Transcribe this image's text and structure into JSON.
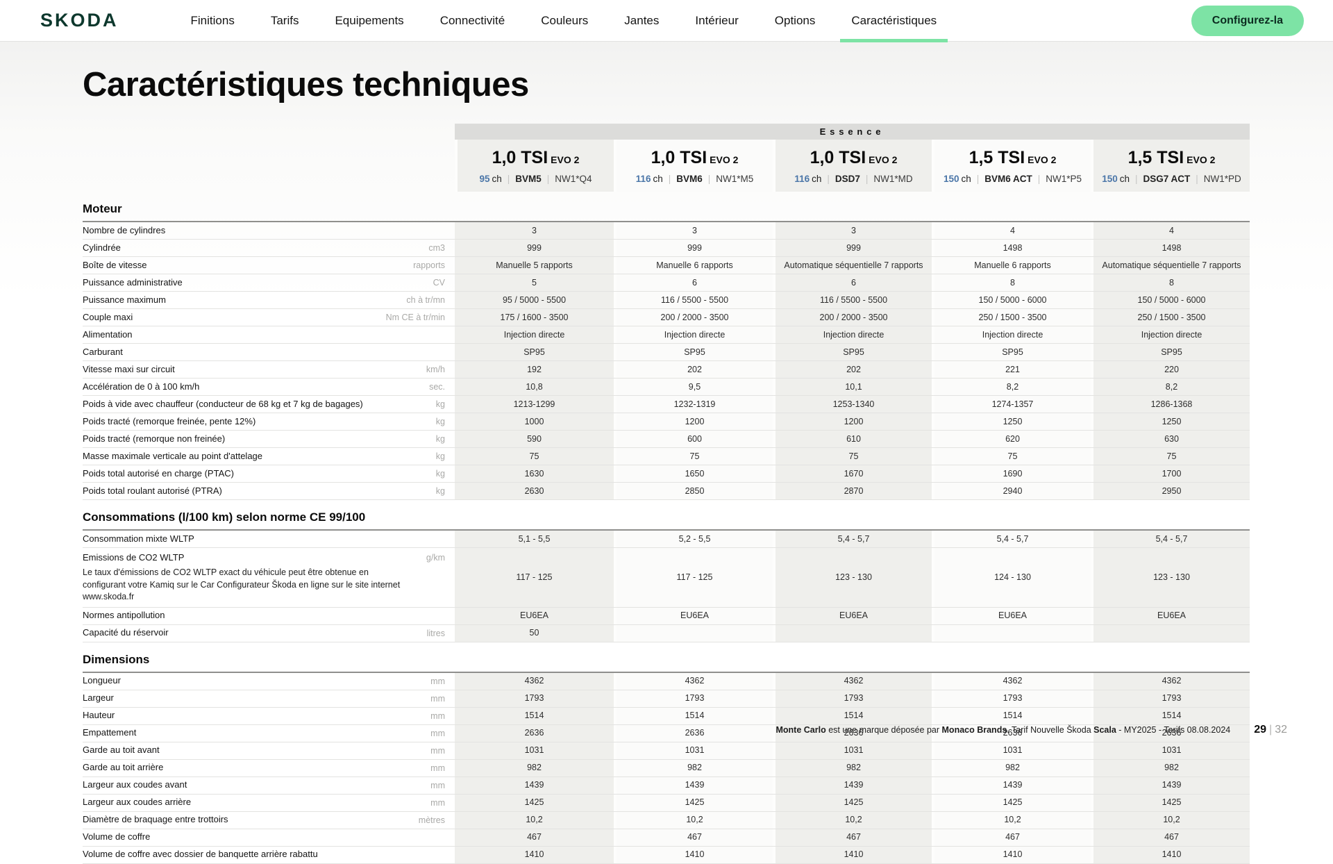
{
  "nav": {
    "logo_text": "SKODA",
    "items": [
      "Finitions",
      "Tarifs",
      "Equipements",
      "Connectivité",
      "Couleurs",
      "Jantes",
      "Intérieur",
      "Options",
      "Caractéristiques"
    ],
    "active_item": "Caractéristiques",
    "cta_label": "Configurez-la"
  },
  "page": {
    "title": "Caractéristiques techniques"
  },
  "colors": {
    "brand_green": "#0d382d",
    "accent_green": "#7de3a5",
    "power_blue": "#4b76a8",
    "band_grey": "#dcdcda",
    "column_tint": "#efefec"
  },
  "table": {
    "fuel_group_label": "Essence",
    "engines": [
      {
        "name": "1,0 TSI",
        "variant": "EVO 2",
        "power": "95",
        "power_unit": "ch",
        "gearbox": "BVM5",
        "code": "NW1*Q4"
      },
      {
        "name": "1,0 TSI",
        "variant": "EVO 2",
        "power": "116",
        "power_unit": "ch",
        "gearbox": "BVM6",
        "code": "NW1*M5"
      },
      {
        "name": "1,0 TSI",
        "variant": "EVO 2",
        "power": "116",
        "power_unit": "ch",
        "gearbox": "DSD7",
        "code": "NW1*MD"
      },
      {
        "name": "1,5 TSI",
        "variant": "EVO 2",
        "power": "150",
        "power_unit": "ch",
        "gearbox": "BVM6 ACT",
        "code": "NW1*P5"
      },
      {
        "name": "1,5 TSI",
        "variant": "EVO 2",
        "power": "150",
        "power_unit": "ch",
        "gearbox": "DSG7 ACT",
        "code": "NW1*PD"
      }
    ],
    "sections": [
      {
        "title": "Moteur",
        "rows": [
          {
            "label": "Nombre de cylindres",
            "unit": "",
            "values": [
              "3",
              "3",
              "3",
              "4",
              "4"
            ]
          },
          {
            "label": "Cylindrée",
            "unit": "cm3",
            "values": [
              "999",
              "999",
              "999",
              "1498",
              "1498"
            ]
          },
          {
            "label": "Boîte de vitesse",
            "unit": "rapports",
            "values": [
              "Manuelle 5 rapports",
              "Manuelle 6 rapports",
              "Automatique séquentielle 7 rapports",
              "Manuelle 6 rapports",
              "Automatique séquentielle 7 rapports"
            ]
          },
          {
            "label": "Puissance administrative",
            "unit": "CV",
            "values": [
              "5",
              "6",
              "6",
              "8",
              "8"
            ]
          },
          {
            "label": "Puissance maximum",
            "unit": "ch à tr/mn",
            "values": [
              "95 / 5000 - 5500",
              "116 / 5500 - 5500",
              "116 / 5500 - 5500",
              "150 / 5000 - 6000",
              "150 / 5000 - 6000"
            ]
          },
          {
            "label": "Couple maxi",
            "unit": "Nm CE à tr/min",
            "values": [
              "175 / 1600 - 3500",
              "200 / 2000 - 3500",
              "200 / 2000 - 3500",
              "250 / 1500 - 3500",
              "250 / 1500 - 3500"
            ]
          },
          {
            "label": "Alimentation",
            "unit": "",
            "values": [
              "Injection directe",
              "Injection directe",
              "Injection directe",
              "Injection directe",
              "Injection directe"
            ]
          },
          {
            "label": "Carburant",
            "unit": "",
            "values": [
              "SP95",
              "SP95",
              "SP95",
              "SP95",
              "SP95"
            ]
          },
          {
            "label": "Vitesse maxi sur circuit",
            "unit": "km/h",
            "values": [
              "192",
              "202",
              "202",
              "221",
              "220"
            ]
          },
          {
            "label": "Accélération de 0 à 100 km/h",
            "unit": "sec.",
            "values": [
              "10,8",
              "9,5",
              "10,1",
              "8,2",
              "8,2"
            ]
          },
          {
            "label": "Poids à vide avec chauffeur (conducteur de 68 kg et 7 kg de bagages)",
            "unit": "kg",
            "values": [
              "1213-1299",
              "1232-1319",
              "1253-1340",
              "1274-1357",
              "1286-1368"
            ]
          },
          {
            "label": "Poids tracté (remorque freinée, pente 12%)",
            "unit": "kg",
            "values": [
              "1000",
              "1200",
              "1200",
              "1250",
              "1250"
            ]
          },
          {
            "label": "Poids tracté (remorque non freinée)",
            "unit": "kg",
            "values": [
              "590",
              "600",
              "610",
              "620",
              "630"
            ]
          },
          {
            "label": "Masse maximale verticale au point d'attelage",
            "unit": "kg",
            "values": [
              "75",
              "75",
              "75",
              "75",
              "75"
            ]
          },
          {
            "label": "Poids total autorisé en charge (PTAC)",
            "unit": "kg",
            "values": [
              "1630",
              "1650",
              "1670",
              "1690",
              "1700"
            ]
          },
          {
            "label": "Poids total roulant autorisé (PTRA)",
            "unit": "kg",
            "values": [
              "2630",
              "2850",
              "2870",
              "2940",
              "2950"
            ]
          }
        ]
      },
      {
        "title": "Consommations (l/100 km) selon norme CE 99/100",
        "rows": [
          {
            "label": "Consommation mixte WLTP",
            "unit": "",
            "values": [
              "5,1 - 5,5",
              "5,2 - 5,5",
              "5,4 - 5,7",
              "5,4 - 5,7",
              "5,4 - 5,7"
            ]
          },
          {
            "label": "Emissions de CO2 WLTP",
            "unit": "g/km",
            "note": "Le taux d'émissions de CO2 WLTP exact du véhicule peut être obtenue en configurant votre Kamiq sur le Car Configurateur Škoda en ligne sur le site internet www.skoda.fr",
            "values": [
              "117 - 125",
              "117 - 125",
              "123 - 130",
              "124 - 130",
              "123 - 130"
            ]
          },
          {
            "label": "Normes antipollution",
            "unit": "",
            "values": [
              "EU6EA",
              "EU6EA",
              "EU6EA",
              "EU6EA",
              "EU6EA"
            ]
          },
          {
            "label": "Capacité du réservoir",
            "unit": "litres",
            "values": [
              "50",
              "",
              "",
              "",
              ""
            ]
          }
        ]
      },
      {
        "title": "Dimensions",
        "rows": [
          {
            "label": "Longueur",
            "unit": "mm",
            "values": [
              "4362",
              "4362",
              "4362",
              "4362",
              "4362"
            ]
          },
          {
            "label": "Largeur",
            "unit": "mm",
            "values": [
              "1793",
              "1793",
              "1793",
              "1793",
              "1793"
            ]
          },
          {
            "label": "Hauteur",
            "unit": "mm",
            "values": [
              "1514",
              "1514",
              "1514",
              "1514",
              "1514"
            ]
          },
          {
            "label": "Empattement",
            "unit": "mm",
            "values": [
              "2636",
              "2636",
              "2636",
              "2636",
              "2636"
            ]
          },
          {
            "label": "Garde au toit avant",
            "unit": "mm",
            "values": [
              "1031",
              "1031",
              "1031",
              "1031",
              "1031"
            ]
          },
          {
            "label": "Garde au toit arrière",
            "unit": "mm",
            "values": [
              "982",
              "982",
              "982",
              "982",
              "982"
            ]
          },
          {
            "label": "Largeur aux coudes avant",
            "unit": "mm",
            "values": [
              "1439",
              "1439",
              "1439",
              "1439",
              "1439"
            ]
          },
          {
            "label": "Largeur aux coudes arrière",
            "unit": "mm",
            "values": [
              "1425",
              "1425",
              "1425",
              "1425",
              "1425"
            ]
          },
          {
            "label": "Diamètre de braquage entre trottoirs",
            "unit": "mètres",
            "values": [
              "10,2",
              "10,2",
              "10,2",
              "10,2",
              "10,2"
            ]
          },
          {
            "label": "Volume de coffre",
            "unit": "",
            "values": [
              "467",
              "467",
              "467",
              "467",
              "467"
            ]
          },
          {
            "label": "Volume de coffre avec dossier de banquette arrière rabattu",
            "unit": "",
            "values": [
              "1410",
              "1410",
              "1410",
              "1410",
              "1410"
            ]
          }
        ]
      }
    ]
  },
  "footer": {
    "segments": [
      {
        "text": "Monte Carlo",
        "bold": true
      },
      {
        "text": " est une marque déposée par ",
        "bold": false
      },
      {
        "text": "Monaco Brands",
        "bold": true
      },
      {
        "text": ". Tarif Nouvelle Škoda ",
        "bold": false
      },
      {
        "text": "Scala",
        "bold": true
      },
      {
        "text": " - MY2025 - Tarifs 08.08.2024",
        "bold": false
      }
    ],
    "page_current": "29",
    "page_separator": "|",
    "page_total": "32"
  }
}
